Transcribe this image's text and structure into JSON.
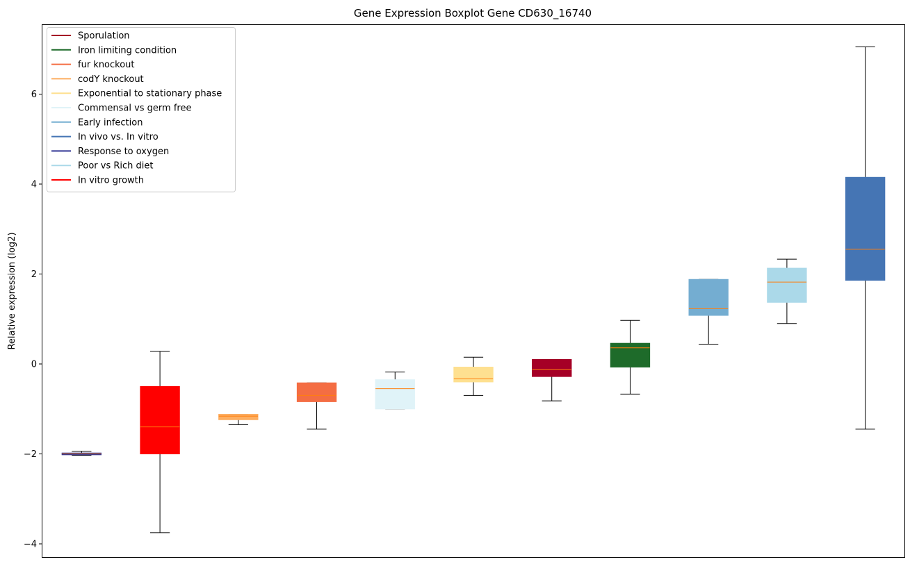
{
  "chart_data": {
    "type": "boxplot",
    "title": "Gene Expression Boxplot Gene CD630_16740",
    "xlabel": "",
    "ylabel": "Relative expression (log2)",
    "ylim": [
      -4.3,
      7.6
    ],
    "yticks": [
      -4,
      -2,
      0,
      2,
      4,
      6
    ],
    "ytick_labels": [
      "−4",
      "−2",
      "0",
      "2",
      "4",
      "6"
    ],
    "grid": false,
    "legend_position": "upper-left",
    "median_color": "#ff7f0e",
    "legend": [
      {
        "label": "Sporulation",
        "color": "#a50026"
      },
      {
        "label": "Iron limiting condition",
        "color": "#1e6b2a"
      },
      {
        "label": "fur knockout",
        "color": "#f46d43"
      },
      {
        "label": "codY knockout",
        "color": "#fdae61"
      },
      {
        "label": "Exponential to stationary phase",
        "color": "#fee090"
      },
      {
        "label": "Commensal vs germ free",
        "color": "#e0f3f8"
      },
      {
        "label": "Early infection",
        "color": "#74add1"
      },
      {
        "label": "In vivo vs. In vitro",
        "color": "#4575b4"
      },
      {
        "label": "Response to oxygen",
        "color": "#313695"
      },
      {
        "label": "Poor vs Rich diet",
        "color": "#abd9e9"
      },
      {
        "label": "In vitro growth",
        "color": "#ff0000"
      }
    ],
    "boxes": [
      {
        "series": "Response to oxygen",
        "color": "#313695",
        "whislo": -2.03,
        "q1": -2.02,
        "med": -2.0,
        "q3": -1.98,
        "whishi": -1.94
      },
      {
        "series": "In vitro growth",
        "color": "#ff0000",
        "whislo": -3.75,
        "q1": -2.0,
        "med": -1.4,
        "q3": -0.5,
        "whishi": 0.28
      },
      {
        "series": "codY knockout",
        "color": "#fdae61",
        "whislo": -1.35,
        "q1": -1.24,
        "med": -1.16,
        "q3": -1.12,
        "whishi": -1.12
      },
      {
        "series": "fur knockout",
        "color": "#f46d43",
        "whislo": -1.45,
        "q1": -0.84,
        "med": -0.7,
        "q3": -0.42,
        "whishi": -0.42
      },
      {
        "series": "Commensal vs germ free",
        "color": "#e0f3f8",
        "whislo": -1.0,
        "q1": -1.0,
        "med": -0.55,
        "q3": -0.35,
        "whishi": -0.18
      },
      {
        "series": "Exponential to stationary phase",
        "color": "#fee090",
        "whislo": -0.7,
        "q1": -0.4,
        "med": -0.33,
        "q3": -0.07,
        "whishi": 0.15
      },
      {
        "series": "Sporulation",
        "color": "#a50026",
        "whislo": -0.82,
        "q1": -0.28,
        "med": -0.12,
        "q3": 0.1,
        "whishi": 0.1
      },
      {
        "series": "Iron limiting condition",
        "color": "#1e6b2a",
        "whislo": -0.67,
        "q1": -0.07,
        "med": 0.36,
        "q3": 0.46,
        "whishi": 0.97
      },
      {
        "series": "Early infection",
        "color": "#74add1",
        "whislo": 0.44,
        "q1": 1.08,
        "med": 1.23,
        "q3": 1.88,
        "whishi": 1.88
      },
      {
        "series": "Poor vs Rich diet",
        "color": "#abd9e9",
        "whislo": 0.9,
        "q1": 1.37,
        "med": 1.82,
        "q3": 2.13,
        "whishi": 2.33
      },
      {
        "series": "In vivo vs. In vitro",
        "color": "#4575b4",
        "whislo": -1.45,
        "q1": 1.86,
        "med": 2.55,
        "q3": 4.15,
        "whishi": 7.05
      }
    ]
  }
}
